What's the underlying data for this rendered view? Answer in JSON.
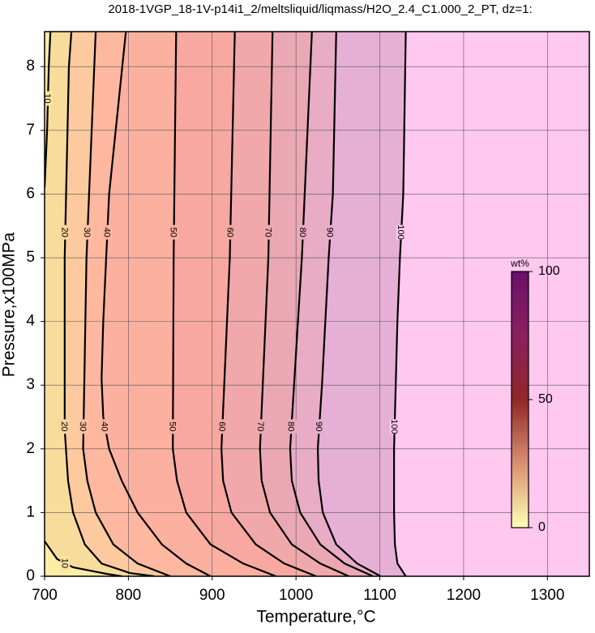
{
  "chart_data": {
    "type": "contour",
    "title": "2018-1VGP_18-1V-p14i1_2/meltsliquid/liqmass/H2O_2.4_C1.000_2_PT, dz=1:",
    "x_label": "Temperature,°C",
    "y_label": "Pressure,x100MPa",
    "xlim": [
      700,
      1350
    ],
    "ylim": [
      0,
      8.55
    ],
    "xticks": [
      700,
      800,
      900,
      1000,
      1100,
      1200,
      1300
    ],
    "yticks": [
      0,
      1,
      2,
      3,
      4,
      5,
      6,
      7,
      8
    ],
    "grid": true,
    "fill_colormap": [
      [
        0,
        "#fff5a8"
      ],
      [
        15,
        "#f8dc9c"
      ],
      [
        35,
        "#ffb8a0"
      ],
      [
        55,
        "#f8a8a0"
      ],
      [
        75,
        "#eaa8b4"
      ],
      [
        95,
        "#e6b0d6"
      ],
      [
        100,
        "#ffc8f0"
      ]
    ],
    "contours": [
      {
        "level": 100,
        "x": [
          1131,
          1128,
          1124,
          1121,
          1119,
          1117,
          1117,
          1118,
          1121,
          1131
        ],
        "y": [
          8.55,
          6,
          5,
          4,
          3,
          2,
          1,
          0.5,
          0.2,
          0
        ]
      },
      {
        "level": 90,
        "x": [
          1048,
          1044,
          1039,
          1031,
          1026,
          1027,
          1032,
          1048,
          1073,
          1101
        ],
        "y": [
          8.55,
          6,
          5,
          3,
          2,
          1.5,
          1,
          0.5,
          0.2,
          0
        ]
      },
      {
        "level": 80,
        "x": [
          1019,
          1007,
          993,
          995,
          1005,
          1029,
          1058,
          1092
        ],
        "y": [
          8.55,
          5,
          2,
          1.5,
          1,
          0.5,
          0.2,
          0
        ]
      },
      {
        "level": 70,
        "x": [
          972,
          967,
          957,
          959,
          969,
          995,
          1029,
          1063
        ],
        "y": [
          8.55,
          5,
          2,
          1.5,
          1,
          0.5,
          0.2,
          0
        ]
      },
      {
        "level": 60,
        "x": [
          927,
          921,
          911,
          913,
          923,
          952,
          986,
          1024
        ],
        "y": [
          8.55,
          5,
          2,
          1.5,
          1,
          0.5,
          0.2,
          0
        ]
      },
      {
        "level": 50,
        "x": [
          857,
          854,
          853,
          858,
          869,
          898,
          937,
          976
        ],
        "y": [
          8.55,
          5,
          2,
          1.5,
          1,
          0.5,
          0.2,
          0
        ]
      },
      {
        "level": 40,
        "x": [
          797,
          777,
          770,
          768,
          770,
          777,
          792,
          811,
          840,
          869,
          898
        ],
        "y": [
          8.55,
          6,
          4,
          3.1,
          2.5,
          2,
          1.5,
          1,
          0.5,
          0.2,
          0
        ]
      },
      {
        "level": 30,
        "x": [
          761,
          750,
          746,
          751,
          761,
          782,
          811,
          850
        ],
        "y": [
          8.55,
          5,
          2,
          1.5,
          1,
          0.5,
          0.2,
          0
        ]
      },
      {
        "level": 20,
        "x": [
          732,
          729,
          724,
          724,
          728,
          734,
          748,
          768,
          802,
          831
        ],
        "y": [
          8.55,
          8,
          5,
          2.3,
          1.5,
          1,
          0.5,
          0.2,
          0.05,
          0
        ]
      },
      {
        "level": 10,
        "x": [
          707,
          705,
          703,
          700
        ],
        "y": [
          8.55,
          8,
          7,
          6.1
        ]
      },
      {
        "level": 10,
        "x": [
          700,
          715,
          734,
          773,
          792
        ],
        "y": [
          0.55,
          0.27,
          0.14,
          0.04,
          0
        ]
      }
    ],
    "colorbar": {
      "label": "wt%",
      "lim": [
        0,
        100
      ],
      "ticks": [
        0,
        50,
        100
      ],
      "colormap": [
        [
          0,
          "#ffffb4"
        ],
        [
          25,
          "#d89070"
        ],
        [
          50,
          "#902828"
        ],
        [
          75,
          "#8a2060"
        ],
        [
          100,
          "#6a1068"
        ]
      ]
    }
  }
}
